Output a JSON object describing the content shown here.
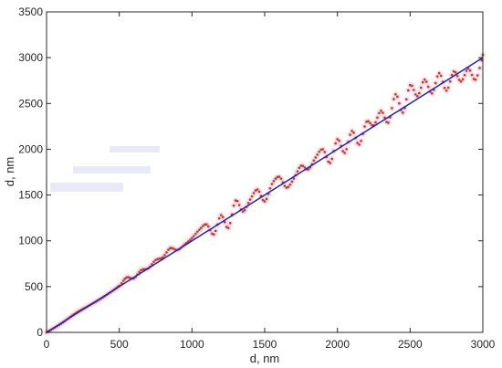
{
  "chart_data": {
    "type": "line",
    "title": "",
    "xlabel": "d, nm",
    "ylabel": "d, nm",
    "xlim": [
      0,
      3000
    ],
    "ylim": [
      0,
      3500
    ],
    "xticks": [
      0,
      500,
      1000,
      1500,
      2000,
      2500,
      3000
    ],
    "yticks": [
      0,
      500,
      1000,
      1500,
      2000,
      2500,
      3000,
      3500
    ],
    "grid": false,
    "legend": "none",
    "colors": {
      "reference_line": "#1f1fcc",
      "measured_points": "#c0392b",
      "axis": "#262626"
    },
    "series": [
      {
        "style": "solid-line",
        "color": "#1f1fcc",
        "x": [
          0,
          3000
        ],
        "y": [
          0,
          3000
        ]
      },
      {
        "style": "dotted-markers",
        "color": "#c0392b",
        "x": [
          0,
          100,
          200,
          300,
          400,
          500,
          550,
          600,
          650,
          700,
          750,
          800,
          850,
          900,
          950,
          1000,
          1050,
          1100,
          1150,
          1200,
          1250,
          1300,
          1350,
          1400,
          1450,
          1500,
          1550,
          1600,
          1650,
          1700,
          1750,
          1800,
          1850,
          1900,
          1950,
          2000,
          2050,
          2100,
          2150,
          2200,
          2250,
          2300,
          2350,
          2400,
          2450,
          2500,
          2550,
          2600,
          2650,
          2700,
          2750,
          2800,
          2850,
          2900,
          2950,
          3000
        ],
        "y": [
          0,
          95,
          210,
          300,
          395,
          510,
          600,
          590,
          680,
          700,
          790,
          820,
          920,
          900,
          960,
          1030,
          1120,
          1180,
          1070,
          1280,
          1140,
          1440,
          1320,
          1450,
          1560,
          1430,
          1620,
          1700,
          1580,
          1680,
          1820,
          1780,
          1910,
          2000,
          1850,
          2110,
          1960,
          2200,
          2050,
          2300,
          2260,
          2420,
          2290,
          2600,
          2400,
          2700,
          2580,
          2760,
          2610,
          2830,
          2640,
          2850,
          2740,
          2880,
          2760,
          3030
        ]
      }
    ]
  }
}
